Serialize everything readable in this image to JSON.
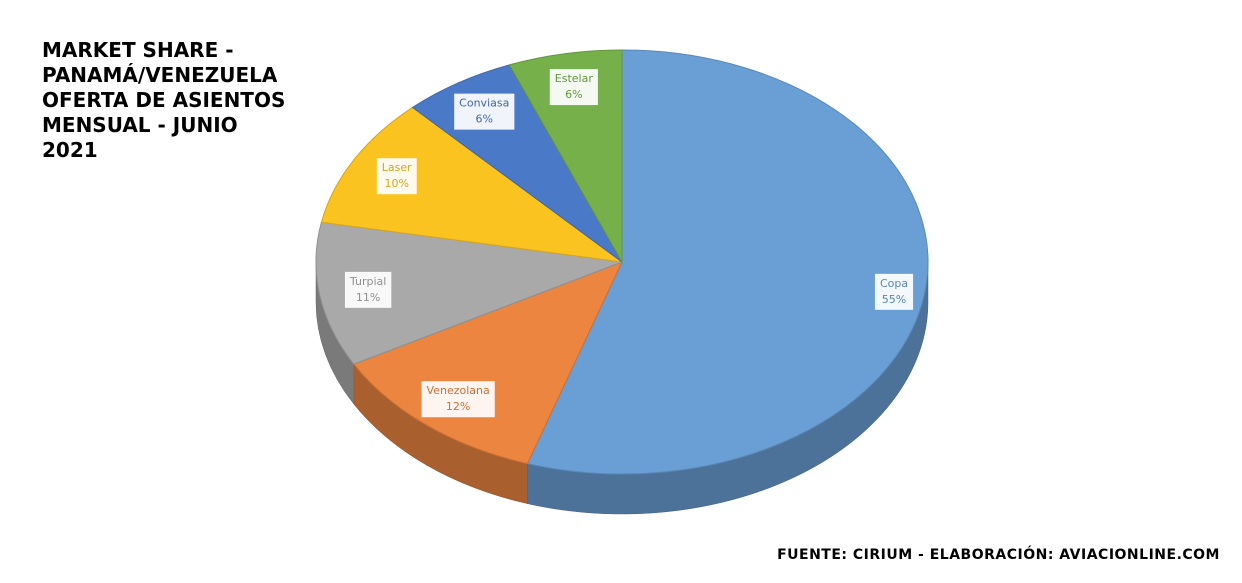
{
  "chart_data": {
    "type": "pie",
    "title": "MARKET SHARE - PANAMÁ/VENEZUELA OFERTA DE ASIENTOS MENSUAL - JUNIO 2021",
    "source": "FUENTE: CIRIUM - ELABORACIÓN: AVIACIONLINE.COM",
    "categories": [
      "Copa",
      "Venezolana",
      "Turpial",
      "Laser",
      "Conviasa",
      "Estelar"
    ],
    "values": [
      55,
      12,
      11,
      10,
      6,
      6
    ],
    "value_labels": [
      "55%",
      "12%",
      "11%",
      "10%",
      "6%",
      "6%"
    ],
    "colors": [
      "#6a9fd6",
      "#ec8540",
      "#a9a9a9",
      "#fbc320",
      "#4a79c8",
      "#75b04a"
    ]
  }
}
